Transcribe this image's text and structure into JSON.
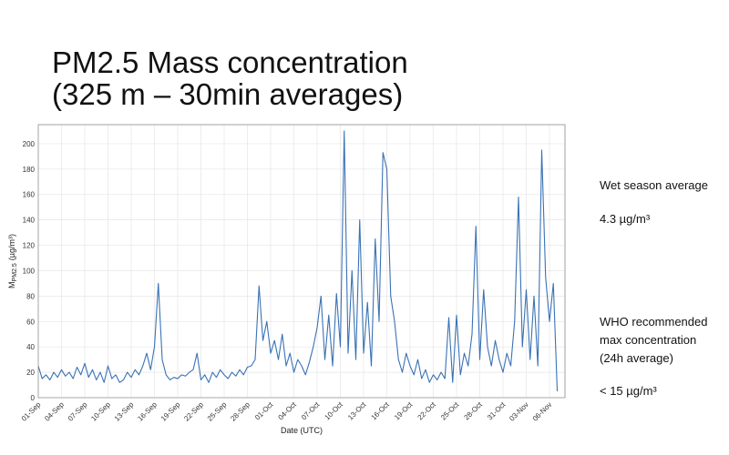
{
  "slide": {
    "title": [
      "PM2.5 Mass concentration",
      "(325 m – 30min averages)"
    ],
    "notes": [
      "Wet season average",
      "4.3 µg/m³",
      "WHO recommended",
      "max concentration",
      "(24h average)",
      "< 15 µg/m³"
    ]
  },
  "chart_data": {
    "type": "line",
    "xlabel": "Date (UTC)",
    "ylabel": {
      "symbol": "M",
      "subscript": "PM2.5",
      "unit": "(µg/m³)"
    },
    "xlim": [
      0,
      68
    ],
    "ylim": [
      0,
      215
    ],
    "xticks": [
      {
        "value": 0,
        "label": "01-Sep"
      },
      {
        "value": 3,
        "label": "04-Sep"
      },
      {
        "value": 6,
        "label": "07-Sep"
      },
      {
        "value": 9,
        "label": "10-Sep"
      },
      {
        "value": 12,
        "label": "13-Sep"
      },
      {
        "value": 15,
        "label": "16-Sep"
      },
      {
        "value": 18,
        "label": "19-Sep"
      },
      {
        "value": 21,
        "label": "22-Sep"
      },
      {
        "value": 24,
        "label": "25-Sep"
      },
      {
        "value": 27,
        "label": "28-Sep"
      },
      {
        "value": 30,
        "label": "01-Oct"
      },
      {
        "value": 33,
        "label": "04-Oct"
      },
      {
        "value": 36,
        "label": "07-Oct"
      },
      {
        "value": 39,
        "label": "10-Oct"
      },
      {
        "value": 42,
        "label": "13-Oct"
      },
      {
        "value": 45,
        "label": "16-Oct"
      },
      {
        "value": 48,
        "label": "19-Oct"
      },
      {
        "value": 51,
        "label": "22-Oct"
      },
      {
        "value": 54,
        "label": "25-Oct"
      },
      {
        "value": 57,
        "label": "28-Oct"
      },
      {
        "value": 60,
        "label": "31-Oct"
      },
      {
        "value": 63,
        "label": "03-Nov"
      },
      {
        "value": 66,
        "label": "06-Nov"
      }
    ],
    "yticks": [
      0,
      20,
      40,
      60,
      80,
      100,
      120,
      140,
      160,
      180,
      200
    ],
    "grid": true,
    "x": [
      0,
      0.5,
      1,
      1.5,
      2,
      2.5,
      3,
      3.5,
      4,
      4.5,
      5,
      5.5,
      6,
      6.5,
      7,
      7.5,
      8,
      8.5,
      9,
      9.5,
      10,
      10.5,
      11,
      11.5,
      12,
      12.5,
      13,
      13.5,
      14,
      14.5,
      15,
      15.5,
      16,
      16.5,
      17,
      17.5,
      18,
      18.5,
      19,
      19.5,
      20,
      20.5,
      21,
      21.5,
      22,
      22.5,
      23,
      23.5,
      24,
      24.5,
      25,
      25.5,
      26,
      26.5,
      27,
      27.5,
      28,
      28.5,
      29,
      29.5,
      30,
      30.5,
      31,
      31.5,
      32,
      32.5,
      33,
      33.5,
      34,
      34.5,
      35,
      35.5,
      36,
      36.5,
      37,
      37.5,
      38,
      38.5,
      39,
      39.5,
      40,
      40.5,
      41,
      41.5,
      42,
      42.5,
      43,
      43.5,
      44,
      44.5,
      45,
      45.5,
      46,
      46.5,
      47,
      47.5,
      48,
      48.5,
      49,
      49.5,
      50,
      50.5,
      51,
      51.5,
      52,
      52.5,
      53,
      53.5,
      54,
      54.5,
      55,
      55.5,
      56,
      56.5,
      57,
      57.5,
      58,
      58.5,
      59,
      59.5,
      60,
      60.5,
      61,
      61.5,
      62,
      62.5,
      63,
      63.5,
      64,
      64.5,
      65,
      65.5,
      66,
      66.5,
      67
    ],
    "series": [
      {
        "color": "#3a72b5",
        "values": [
          25,
          15,
          18,
          14,
          20,
          16,
          22,
          17,
          20,
          15,
          24,
          18,
          27,
          16,
          22,
          14,
          20,
          12,
          25,
          15,
          18,
          12,
          14,
          20,
          16,
          22,
          18,
          25,
          35,
          22,
          40,
          90,
          30,
          18,
          14,
          16,
          15,
          18,
          17,
          20,
          22,
          35,
          14,
          18,
          12,
          20,
          16,
          22,
          18,
          15,
          20,
          17,
          22,
          18,
          24,
          25,
          30,
          88,
          45,
          60,
          35,
          45,
          30,
          50,
          25,
          35,
          20,
          30,
          25,
          18,
          28,
          40,
          55,
          80,
          30,
          65,
          25,
          82,
          40,
          210,
          35,
          100,
          30,
          140,
          35,
          75,
          25,
          125,
          60,
          193,
          180,
          80,
          60,
          30,
          20,
          35,
          25,
          18,
          30,
          15,
          22,
          12,
          18,
          14,
          20,
          15,
          63,
          12,
          65,
          18,
          35,
          25,
          50,
          135,
          30,
          85,
          40,
          25,
          45,
          30,
          20,
          35,
          25,
          60,
          158,
          40,
          85,
          30,
          80,
          25,
          195,
          95,
          60,
          90,
          5
        ]
      }
    ]
  }
}
